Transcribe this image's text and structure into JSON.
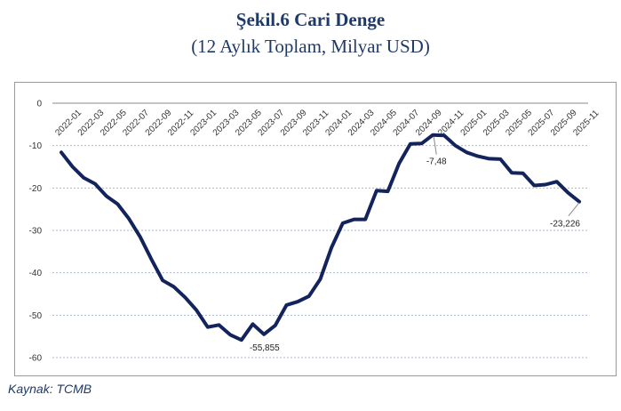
{
  "header": {
    "title": "Şekil.6 Cari Denge",
    "subtitle": "(12 Aylık Toplam, Milyar USD)"
  },
  "footer": {
    "source": "Kaynak: TCMB"
  },
  "colors": {
    "line": "#13235b",
    "title": "#1f3a68",
    "grid": "#a9b8d6"
  },
  "chart_data": {
    "type": "line",
    "title": "",
    "xlabel": "",
    "ylabel": "",
    "ylim": [
      -60,
      0
    ],
    "yticks": [
      0,
      -10,
      -20,
      -30,
      -40,
      -50,
      -60
    ],
    "grid": true,
    "legend": "none",
    "x_tick_labels": [
      "2022-01",
      "2022-03",
      "2022-05",
      "2022-07",
      "2022-09",
      "2022-11",
      "2023-01",
      "2023-03",
      "2023-05",
      "2023-07",
      "2023-09",
      "2023-11",
      "2024-01",
      "2024-03",
      "2024-05",
      "2024-07",
      "2024-09",
      "2024-11",
      "2025-01",
      "2025-03",
      "2025-05",
      "2025-07",
      "2025-09",
      "2025-11"
    ],
    "x": [
      "2022-01",
      "2022-02",
      "2022-03",
      "2022-04",
      "2022-05",
      "2022-06",
      "2022-07",
      "2022-08",
      "2022-09",
      "2022-10",
      "2022-11",
      "2022-12",
      "2023-01",
      "2023-02",
      "2023-03",
      "2023-04",
      "2023-05",
      "2023-06",
      "2023-07",
      "2023-08",
      "2023-09",
      "2023-10",
      "2023-11",
      "2023-12",
      "2024-01",
      "2024-02",
      "2024-03",
      "2024-04",
      "2024-05",
      "2024-06",
      "2024-07",
      "2024-08",
      "2024-09",
      "2024-10",
      "2024-11",
      "2024-12",
      "2025-01",
      "2025-02",
      "2025-03",
      "2025-04",
      "2025-05",
      "2025-06",
      "2025-07",
      "2025-08",
      "2025-09",
      "2025-10",
      "2025-11"
    ],
    "series": [
      {
        "values": [
          -11.6,
          -15.0,
          -17.6,
          -19.0,
          -21.9,
          -23.8,
          -27.2,
          -31.5,
          -36.8,
          -41.8,
          -43.3,
          -45.8,
          -48.8,
          -52.8,
          -52.3,
          -54.6,
          -55.855,
          -52.1,
          -54.5,
          -52.4,
          -47.6,
          -46.8,
          -45.5,
          -41.5,
          -34.0,
          -28.3,
          -27.4,
          -27.4,
          -20.6,
          -20.8,
          -14.2,
          -9.6,
          -9.5,
          -7.48,
          -7.6,
          -10.0,
          -11.6,
          -12.5,
          -13.1,
          -13.2,
          -16.4,
          -16.5,
          -19.4,
          -19.2,
          -18.5,
          -21.1,
          -23.226
        ]
      }
    ],
    "annotations": [
      {
        "x": "2023-05",
        "value": -55.855,
        "label": "-55,855"
      },
      {
        "x": "2024-10",
        "value": -7.48,
        "label": "-7,48"
      },
      {
        "x": "2025-11",
        "value": -23.226,
        "label": "-23,226"
      }
    ]
  }
}
